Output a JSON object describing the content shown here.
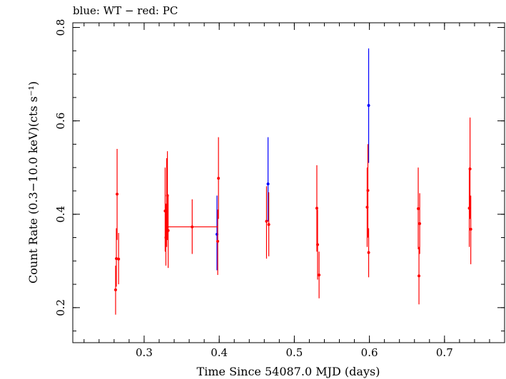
{
  "chart_data": {
    "type": "scatter",
    "title": "blue: WT − red: PC",
    "xlabel": "Time Since 54087.0 MJD (days)",
    "ylabel": "Count Rate (0.3−10.0 keV)(cts s⁻¹)",
    "xlim": [
      0.205,
      0.78
    ],
    "ylim": [
      0.125,
      0.81
    ],
    "xticks": [
      0.3,
      0.4,
      0.5,
      0.6,
      0.7
    ],
    "yticks": [
      0.2,
      0.4,
      0.6,
      0.8
    ],
    "grid": false,
    "series": [
      {
        "color": "#0000ff",
        "points": [
          {
            "x": 0.397,
            "y": 0.357,
            "ylo": 0.28,
            "yhi": 0.44,
            "xerr": 0.0
          },
          {
            "x": 0.465,
            "y": 0.465,
            "ylo": 0.385,
            "yhi": 0.565,
            "xerr": 0.0
          },
          {
            "x": 0.599,
            "y": 0.633,
            "ylo": 0.51,
            "yhi": 0.755,
            "xerr": 0.0
          }
        ]
      },
      {
        "color": "#ff0000",
        "points": [
          {
            "x": 0.262,
            "y": 0.238,
            "ylo": 0.185,
            "yhi": 0.29,
            "xerr": 0.0
          },
          {
            "x": 0.263,
            "y": 0.305,
            "ylo": 0.245,
            "yhi": 0.37,
            "xerr": 0.0
          },
          {
            "x": 0.264,
            "y": 0.443,
            "ylo": 0.345,
            "yhi": 0.54,
            "xerr": 0.0
          },
          {
            "x": 0.266,
            "y": 0.304,
            "ylo": 0.25,
            "yhi": 0.36,
            "xerr": 0.0
          },
          {
            "x": 0.328,
            "y": 0.407,
            "ylo": 0.32,
            "yhi": 0.5,
            "xerr": 0.0
          },
          {
            "x": 0.329,
            "y": 0.35,
            "ylo": 0.29,
            "yhi": 0.42,
            "xerr": 0.0
          },
          {
            "x": 0.33,
            "y": 0.42,
            "ylo": 0.33,
            "yhi": 0.52,
            "xerr": 0.0
          },
          {
            "x": 0.331,
            "y": 0.44,
            "ylo": 0.345,
            "yhi": 0.535,
            "xerr": 0.0
          },
          {
            "x": 0.332,
            "y": 0.365,
            "ylo": 0.285,
            "yhi": 0.44,
            "xerr": 0.0
          },
          {
            "x": 0.364,
            "y": 0.373,
            "ylo": 0.315,
            "yhi": 0.432,
            "xerr": 0.0345
          },
          {
            "x": 0.398,
            "y": 0.342,
            "ylo": 0.27,
            "yhi": 0.41,
            "xerr": 0.0
          },
          {
            "x": 0.399,
            "y": 0.477,
            "ylo": 0.39,
            "yhi": 0.565,
            "xerr": 0.0
          },
          {
            "x": 0.463,
            "y": 0.385,
            "ylo": 0.305,
            "yhi": 0.46,
            "xerr": 0.0
          },
          {
            "x": 0.466,
            "y": 0.378,
            "ylo": 0.31,
            "yhi": 0.447,
            "xerr": 0.0
          },
          {
            "x": 0.53,
            "y": 0.413,
            "ylo": 0.32,
            "yhi": 0.505,
            "xerr": 0.0
          },
          {
            "x": 0.531,
            "y": 0.335,
            "ylo": 0.26,
            "yhi": 0.41,
            "xerr": 0.0
          },
          {
            "x": 0.533,
            "y": 0.27,
            "ylo": 0.22,
            "yhi": 0.32,
            "xerr": 0.0
          },
          {
            "x": 0.597,
            "y": 0.415,
            "ylo": 0.33,
            "yhi": 0.5,
            "xerr": 0.0
          },
          {
            "x": 0.598,
            "y": 0.451,
            "ylo": 0.35,
            "yhi": 0.55,
            "xerr": 0.0
          },
          {
            "x": 0.599,
            "y": 0.318,
            "ylo": 0.265,
            "yhi": 0.37,
            "xerr": 0.0
          },
          {
            "x": 0.665,
            "y": 0.412,
            "ylo": 0.325,
            "yhi": 0.5,
            "xerr": 0.0
          },
          {
            "x": 0.666,
            "y": 0.268,
            "ylo": 0.207,
            "yhi": 0.33,
            "xerr": 0.0
          },
          {
            "x": 0.667,
            "y": 0.38,
            "ylo": 0.315,
            "yhi": 0.445,
            "xerr": 0.0
          },
          {
            "x": 0.733,
            "y": 0.413,
            "ylo": 0.33,
            "yhi": 0.5,
            "xerr": 0.0
          },
          {
            "x": 0.734,
            "y": 0.497,
            "ylo": 0.39,
            "yhi": 0.607,
            "xerr": 0.0
          },
          {
            "x": 0.735,
            "y": 0.368,
            "ylo": 0.293,
            "yhi": 0.44,
            "xerr": 0.0
          }
        ]
      }
    ]
  }
}
